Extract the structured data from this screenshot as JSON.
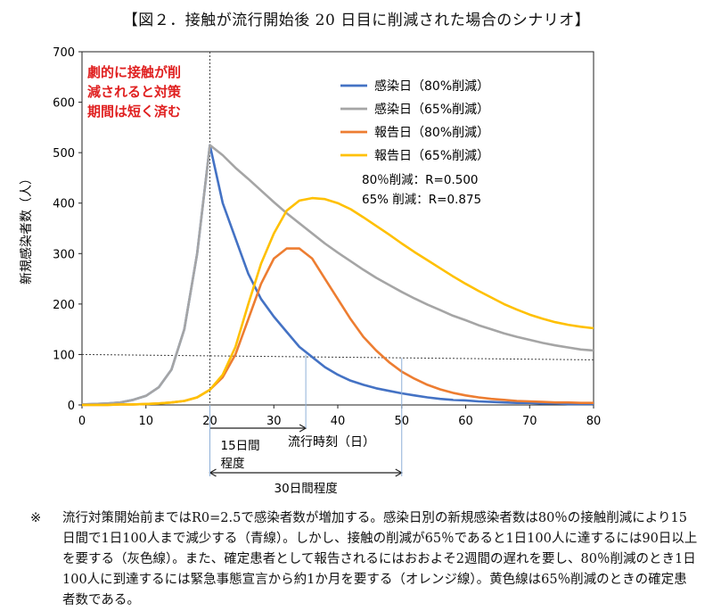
{
  "title": "【図２．接触が流行開始後 20 日目に削減された場合のシナリオ】",
  "chart_data": {
    "type": "line",
    "title": "",
    "xlabel": "流行時刻（日）",
    "ylabel": "新規感染者数（人）",
    "xlim": [
      0,
      80
    ],
    "ylim": [
      0,
      700
    ],
    "xticks": [
      0,
      10,
      20,
      30,
      40,
      50,
      60,
      70,
      80
    ],
    "yticks": [
      0,
      100,
      200,
      300,
      400,
      500,
      600,
      700
    ],
    "grid": false,
    "legend_position": "top-right",
    "annotation_text": [
      "劇的に接触が削",
      "減されると対策",
      "期間は短く済む"
    ],
    "r_values": [
      "80％削減：R=0.500",
      "65% 削減：R=0.875"
    ],
    "reference_hline_y": 100,
    "reference_vline_x": 20,
    "brackets": [
      {
        "from": 20,
        "to": 35,
        "label": [
          "15日間",
          "程度"
        ]
      },
      {
        "from": 20,
        "to": 50,
        "label": [
          "30日間程度"
        ]
      }
    ],
    "series": [
      {
        "name": "感染日（80%削減）",
        "color": "#4472C4",
        "x": [
          0,
          2,
          4,
          6,
          8,
          10,
          12,
          14,
          16,
          18,
          20,
          22,
          24,
          26,
          28,
          30,
          32,
          34,
          36,
          38,
          40,
          42,
          44,
          46,
          48,
          50,
          52,
          54,
          56,
          58,
          60,
          62,
          64,
          66,
          68,
          70,
          72,
          74,
          76,
          78,
          80
        ],
        "y": [
          1,
          2,
          3,
          5,
          10,
          18,
          35,
          70,
          150,
          300,
          515,
          400,
          330,
          260,
          210,
          175,
          145,
          115,
          95,
          75,
          60,
          48,
          40,
          33,
          28,
          23,
          19,
          15,
          12,
          10,
          9,
          7,
          6,
          5,
          4,
          4,
          3,
          3,
          2,
          2,
          2
        ]
      },
      {
        "name": "感染日（65%削減）",
        "color": "#A5A5A5",
        "x": [
          0,
          2,
          4,
          6,
          8,
          10,
          12,
          14,
          16,
          18,
          20,
          22,
          24,
          26,
          28,
          30,
          32,
          34,
          36,
          38,
          40,
          42,
          44,
          46,
          48,
          50,
          52,
          54,
          56,
          58,
          60,
          62,
          64,
          66,
          68,
          70,
          72,
          74,
          76,
          78,
          80
        ],
        "y": [
          1,
          2,
          3,
          5,
          10,
          18,
          35,
          70,
          150,
          300,
          515,
          495,
          470,
          448,
          425,
          402,
          380,
          360,
          340,
          320,
          302,
          285,
          268,
          252,
          238,
          224,
          211,
          199,
          188,
          177,
          168,
          158,
          150,
          142,
          135,
          129,
          123,
          118,
          114,
          110,
          108
        ]
      },
      {
        "name": "報告日（80%削減）",
        "color": "#ED7D31",
        "x": [
          0,
          2,
          4,
          6,
          8,
          10,
          12,
          14,
          16,
          18,
          20,
          22,
          24,
          26,
          28,
          30,
          32,
          34,
          36,
          38,
          40,
          42,
          44,
          46,
          48,
          50,
          52,
          54,
          56,
          58,
          60,
          62,
          64,
          66,
          68,
          70,
          72,
          74,
          76,
          78,
          80
        ],
        "y": [
          0,
          0,
          0,
          1,
          1,
          2,
          3,
          5,
          8,
          15,
          30,
          55,
          100,
          170,
          240,
          290,
          310,
          310,
          290,
          250,
          210,
          170,
          135,
          108,
          85,
          66,
          52,
          40,
          31,
          24,
          19,
          15,
          12,
          10,
          8,
          7,
          6,
          5,
          5,
          4,
          4
        ]
      },
      {
        "name": "報告日（65%削減）",
        "color": "#FFC000",
        "x": [
          0,
          2,
          4,
          6,
          8,
          10,
          12,
          14,
          16,
          18,
          20,
          22,
          24,
          26,
          28,
          30,
          32,
          34,
          36,
          38,
          40,
          42,
          44,
          46,
          48,
          50,
          52,
          54,
          56,
          58,
          60,
          62,
          64,
          66,
          68,
          70,
          72,
          74,
          76,
          78,
          80
        ],
        "y": [
          0,
          0,
          0,
          1,
          1,
          2,
          3,
          5,
          8,
          15,
          30,
          60,
          115,
          200,
          280,
          340,
          385,
          405,
          410,
          408,
          400,
          388,
          372,
          355,
          338,
          320,
          303,
          287,
          271,
          255,
          240,
          226,
          213,
          200,
          189,
          179,
          171,
          164,
          159,
          155,
          152
        ]
      }
    ]
  },
  "footnote": {
    "mark": "※",
    "text": "流行対策開始前まではR0=2.5で感染者数が増加する。感染日別の新規感染者数は80％の接触削減により15日間で1日100人まで減少する（青線）。しかし、接触の削減が65％であると1日100人に達するには90日以上を要する（灰色線）。また、確定患者として報告されるにはおおよそ2週間の遅れを要し、80％削減のとき1日100人に到達するには緊急事態宣言から約1か月を要する（オレンジ線）。黄色線は65％削減のときの確定患者数である。"
  }
}
